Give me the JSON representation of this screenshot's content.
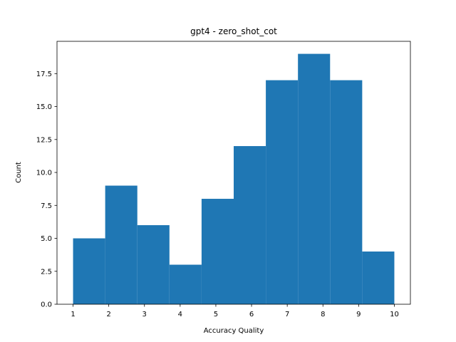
{
  "chart_data": {
    "type": "bar",
    "subtype": "histogram",
    "title": "gpt4 - zero_shot_cot",
    "xlabel": "Accuracy Quality",
    "ylabel": "Count",
    "bin_edges": [
      1,
      1.9,
      2.8,
      3.7,
      4.6,
      5.5,
      6.4,
      7.3,
      8.2,
      9.1,
      10
    ],
    "values": [
      5,
      9,
      6,
      3,
      8,
      12,
      17,
      19,
      17,
      4
    ],
    "xlim": [
      0.55,
      10.45
    ],
    "ylim": [
      0,
      19.95
    ],
    "xticks": [
      1,
      2,
      3,
      4,
      5,
      6,
      7,
      8,
      9,
      10
    ],
    "yticks": [
      0.0,
      2.5,
      5.0,
      7.5,
      10.0,
      12.5,
      15.0,
      17.5
    ],
    "ytick_labels": [
      "0.0",
      "2.5",
      "5.0",
      "7.5",
      "10.0",
      "12.5",
      "15.0",
      "17.5"
    ],
    "bar_color": "#1f77b4",
    "grid": false
  }
}
